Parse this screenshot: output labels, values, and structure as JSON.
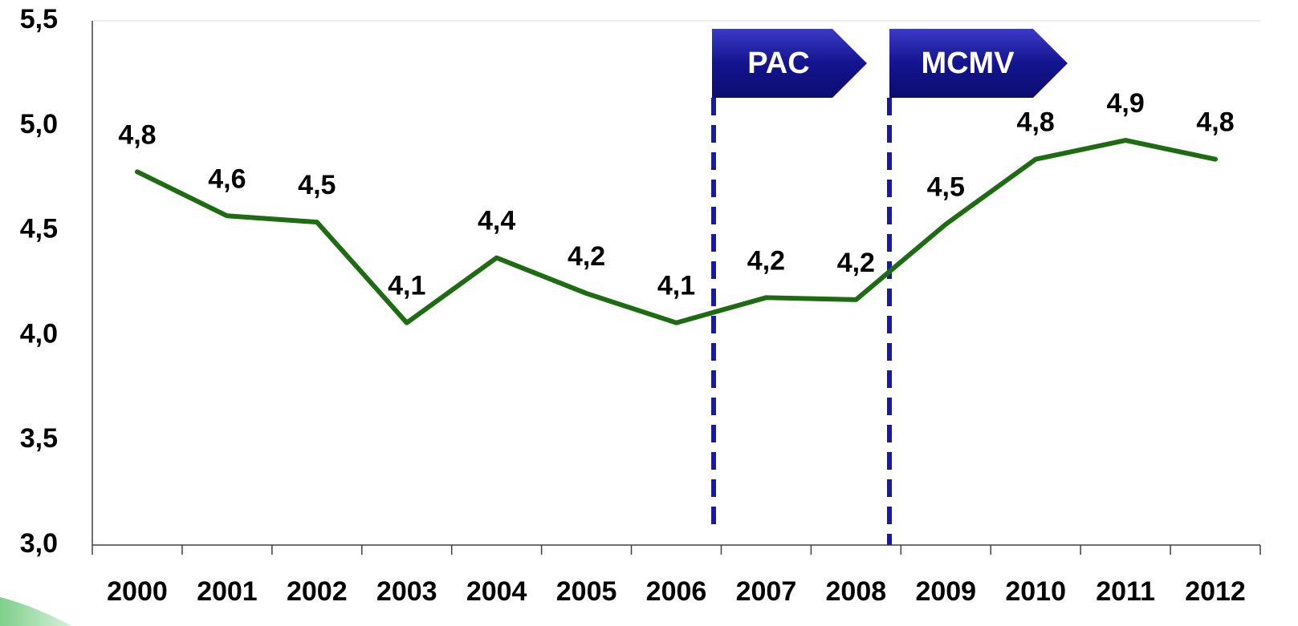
{
  "chart_data": {
    "type": "line",
    "categories": [
      "2000",
      "2001",
      "2002",
      "2003",
      "2004",
      "2005",
      "2006",
      "2007",
      "2008",
      "2009",
      "2010",
      "2011",
      "2012"
    ],
    "series": [
      {
        "color": "#1e6b14",
        "values": [
          4.78,
          4.57,
          4.54,
          4.06,
          4.37,
          4.2,
          4.06,
          4.18,
          4.17,
          4.53,
          4.84,
          4.93,
          4.84
        ],
        "value_labels": [
          "4,8",
          "4,6",
          "4,5",
          "4,1",
          "4,4",
          "4,2",
          "4,1",
          "4,2",
          "4,2",
          "4,5",
          "4,8",
          "4,9",
          "4,8"
        ]
      }
    ],
    "ylim": [
      3.0,
      5.5
    ],
    "yticks": [
      {
        "value": 3.0,
        "label": "3,0"
      },
      {
        "value": 3.5,
        "label": "3,5"
      },
      {
        "value": 4.0,
        "label": "4,0"
      },
      {
        "value": 4.5,
        "label": "4,5"
      },
      {
        "value": 5.0,
        "label": "5,0"
      },
      {
        "value": 5.5,
        "label": "5,5"
      }
    ],
    "annotations": [
      {
        "text": "PAC"
      },
      {
        "text": "MCMV"
      }
    ],
    "grid": false
  }
}
